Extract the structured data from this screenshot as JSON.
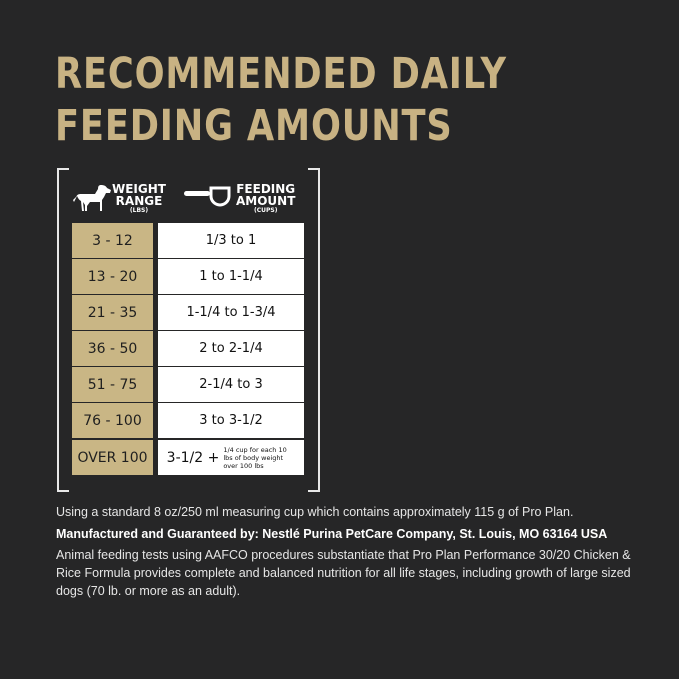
{
  "title": [
    "RECOMMENDED DAILY",
    "FEEDING AMOUNTS"
  ],
  "header": {
    "weight": "WEIGHT",
    "range": "RANGE",
    "lbs": "(LBS)",
    "feeding": "FEEDING",
    "amount": "AMOUNT",
    "cups": "(CUPS)"
  },
  "rows": [
    {
      "weight": "3 - 12",
      "amount": "1/3 to 1"
    },
    {
      "weight": "13 - 20",
      "amount": "1 to 1-1/4"
    },
    {
      "weight": "21 - 35",
      "amount": "1-1/4 to 1-3/4"
    },
    {
      "weight": "36 - 50",
      "amount": "2 to 2-1/4"
    },
    {
      "weight": "51 - 75",
      "amount": "2-1/4 to 3"
    },
    {
      "weight": "76 - 100",
      "amount": "3 to 3-1/2"
    },
    {
      "weight": "OVER 100",
      "amount": "3-1/2 +",
      "note": "1/4 cup for each 10 lbs of body weight over 100 lbs"
    }
  ],
  "footer": {
    "measure": "Using a standard 8 oz/250 ml measuring cup which contains approximately 115 g of Pro Plan.",
    "manufacturer": "Manufactured and Guaranteed by: Nestlé Purina PetCare Company, St. Louis, MO 63164 USA",
    "aafco": "Animal feeding tests using AAFCO procedures substantiate that Pro Plan Performance 30/20 Chicken & Rice Formula provides complete and balanced nutrition for all life stages, including growth of large sized dogs (70 lb. or more as an adult)."
  },
  "colors": {
    "gold": "#c8b283",
    "background": "#262627"
  },
  "icons": [
    "dog-icon",
    "measuring-cup-icon"
  ]
}
